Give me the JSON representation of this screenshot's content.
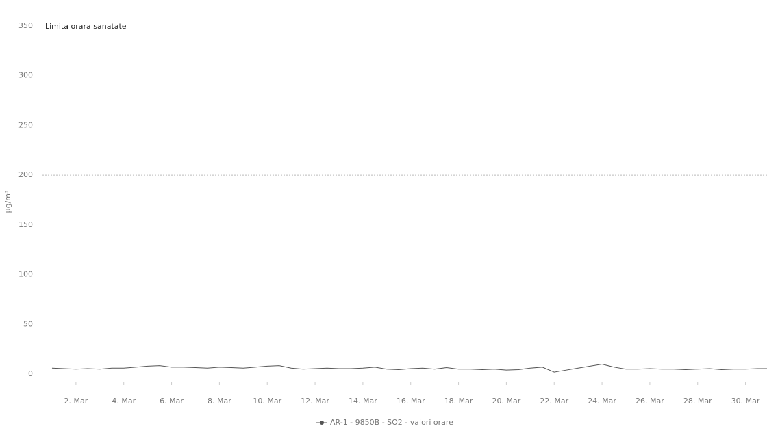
{
  "chart_data": {
    "type": "line",
    "annotation": "Limita orara sanatate",
    "limit_value": 200,
    "limit_color": "#bbbbbb",
    "y_label": "µg/m³",
    "x": [
      1,
      1.5,
      2,
      2.5,
      3,
      3.5,
      4,
      4.5,
      5,
      5.5,
      6,
      6.5,
      7,
      7.5,
      8,
      8.5,
      9,
      9.5,
      10,
      10.5,
      11,
      11.5,
      12,
      12.5,
      13,
      13.5,
      14,
      14.5,
      15,
      15.5,
      16,
      16.5,
      17,
      17.5,
      18,
      18.5,
      19,
      19.5,
      20,
      20.5,
      21,
      21.5,
      22,
      22.5,
      23,
      23.5,
      24,
      24.5,
      25,
      25.5,
      26,
      26.5,
      27,
      27.5,
      28,
      28.5,
      29,
      29.5,
      30,
      30.5,
      30.9
    ],
    "series": [
      {
        "name": "AR-1 - 9850B - SO2 - valori orare",
        "color": "#555555",
        "values": [
          6,
          5.5,
          5,
          5.5,
          5,
          6,
          6,
          7,
          8,
          8.5,
          7,
          7,
          6.5,
          6,
          7,
          6.5,
          6,
          7,
          8,
          8.5,
          6,
          5,
          5.5,
          6,
          5.5,
          5.5,
          6,
          7,
          5,
          4.5,
          5.5,
          6,
          5,
          6.5,
          5,
          5,
          4.5,
          5,
          4,
          4.5,
          6,
          7,
          2,
          4,
          6,
          8,
          10,
          7,
          5,
          5,
          5.5,
          5,
          5,
          4.5,
          5,
          5.5,
          4.5,
          5,
          5,
          5.5,
          5.5
        ]
      }
    ],
    "xlim": [
      0.6,
      30.9
    ],
    "xticks": [
      {
        "value": 2,
        "label": "2. Mar"
      },
      {
        "value": 4,
        "label": "4. Mar"
      },
      {
        "value": 6,
        "label": "6. Mar"
      },
      {
        "value": 8,
        "label": "8. Mar"
      },
      {
        "value": 10,
        "label": "10. Mar"
      },
      {
        "value": 12,
        "label": "12. Mar"
      },
      {
        "value": 14,
        "label": "14. Mar"
      },
      {
        "value": 16,
        "label": "16. Mar"
      },
      {
        "value": 18,
        "label": "18. Mar"
      },
      {
        "value": 20,
        "label": "20. Mar"
      },
      {
        "value": 22,
        "label": "22. Mar"
      },
      {
        "value": 24,
        "label": "24. Mar"
      },
      {
        "value": 26,
        "label": "26. Mar"
      },
      {
        "value": 28,
        "label": "28. Mar"
      },
      {
        "value": 30,
        "label": "30. Mar"
      }
    ],
    "ylim": [
      0,
      350
    ],
    "yticks": [
      0,
      50,
      100,
      150,
      200,
      250,
      300,
      350
    ],
    "grid": false
  }
}
